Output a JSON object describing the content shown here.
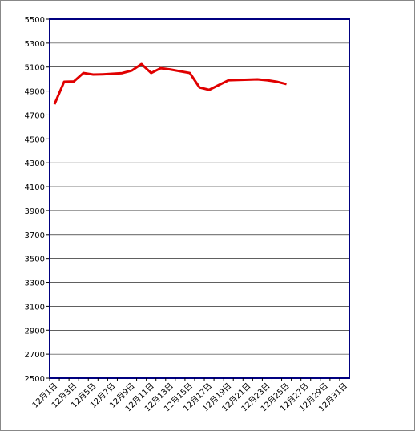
{
  "chart_data": {
    "type": "line",
    "categories": [
      "12月1日",
      null,
      "12月3日",
      null,
      "12月5日",
      null,
      "12月7日",
      null,
      "12月9日",
      null,
      "12月11日",
      null,
      "12月13日",
      null,
      "12月15日",
      null,
      "12月17日",
      null,
      "12月19日",
      null,
      "12月21日",
      null,
      "12月23日",
      null,
      "12月25日",
      null,
      "12月27日",
      null,
      "12月29日",
      null,
      "12月31日"
    ],
    "values": [
      4790,
      4978,
      4980,
      5051,
      5038,
      5040,
      5045,
      5050,
      5071,
      5125,
      5051,
      5091,
      5080,
      5065,
      5051,
      4930,
      4910,
      4950,
      4990,
      4993,
      4995,
      4998,
      4990,
      4978,
      4958,
      null,
      null,
      null,
      null,
      null,
      null
    ],
    "color": "#e00000",
    "ylim": [
      2500,
      5500
    ],
    "yticks": [
      2500,
      2700,
      2900,
      3100,
      3300,
      3500,
      3700,
      3900,
      4100,
      4300,
      4500,
      4700,
      4900,
      5100,
      5300,
      5500
    ],
    "grid": true
  }
}
